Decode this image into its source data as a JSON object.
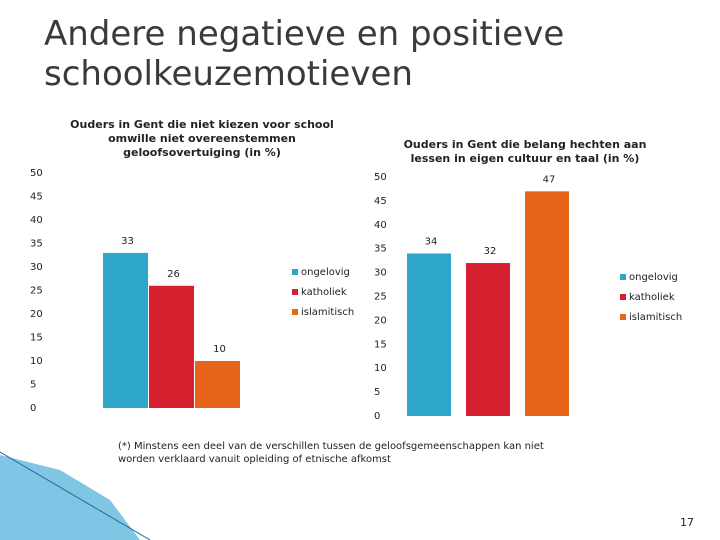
{
  "slide_title": "Andere negatieve en positieve schoolkeuzemotieven",
  "chart_data": [
    {
      "type": "bar",
      "title": "Ouders in Gent die niet kiezen voor school omwille niet overeenstemmen geloofsovertuiging (in %)",
      "series": [
        {
          "name": "ongelovig",
          "color": "#2ea6c8",
          "values": [
            33
          ]
        },
        {
          "name": "katholiek",
          "color": "#d7202f",
          "values": [
            26
          ]
        },
        {
          "name": "islamitisch",
          "color": "#e8641b",
          "values": [
            10
          ]
        }
      ],
      "ylim": [
        0,
        50
      ],
      "yticks": [
        0,
        5,
        10,
        15,
        20,
        25,
        30,
        35,
        40,
        45,
        50
      ],
      "legend": "right"
    },
    {
      "type": "bar",
      "title": "Ouders in Gent die belang hechten aan lessen in eigen cultuur en taal (in %)",
      "series": [
        {
          "name": "ongelovig",
          "color": "#2ea6c8",
          "values": [
            34
          ]
        },
        {
          "name": "katholiek",
          "color": "#d7202f",
          "values": [
            32
          ]
        },
        {
          "name": "islamitisch",
          "color": "#e8641b",
          "values": [
            47
          ]
        }
      ],
      "ylim": [
        0,
        50
      ],
      "yticks": [
        0,
        5,
        10,
        15,
        20,
        25,
        30,
        35,
        40,
        45,
        50
      ],
      "legend": "right"
    }
  ],
  "footnote": "(*) Minstens een deel van de verschillen tussen de geloofsgemeenschappen kan niet worden verklaard vanuit opleiding of etnische afkomst",
  "page_number": "17"
}
